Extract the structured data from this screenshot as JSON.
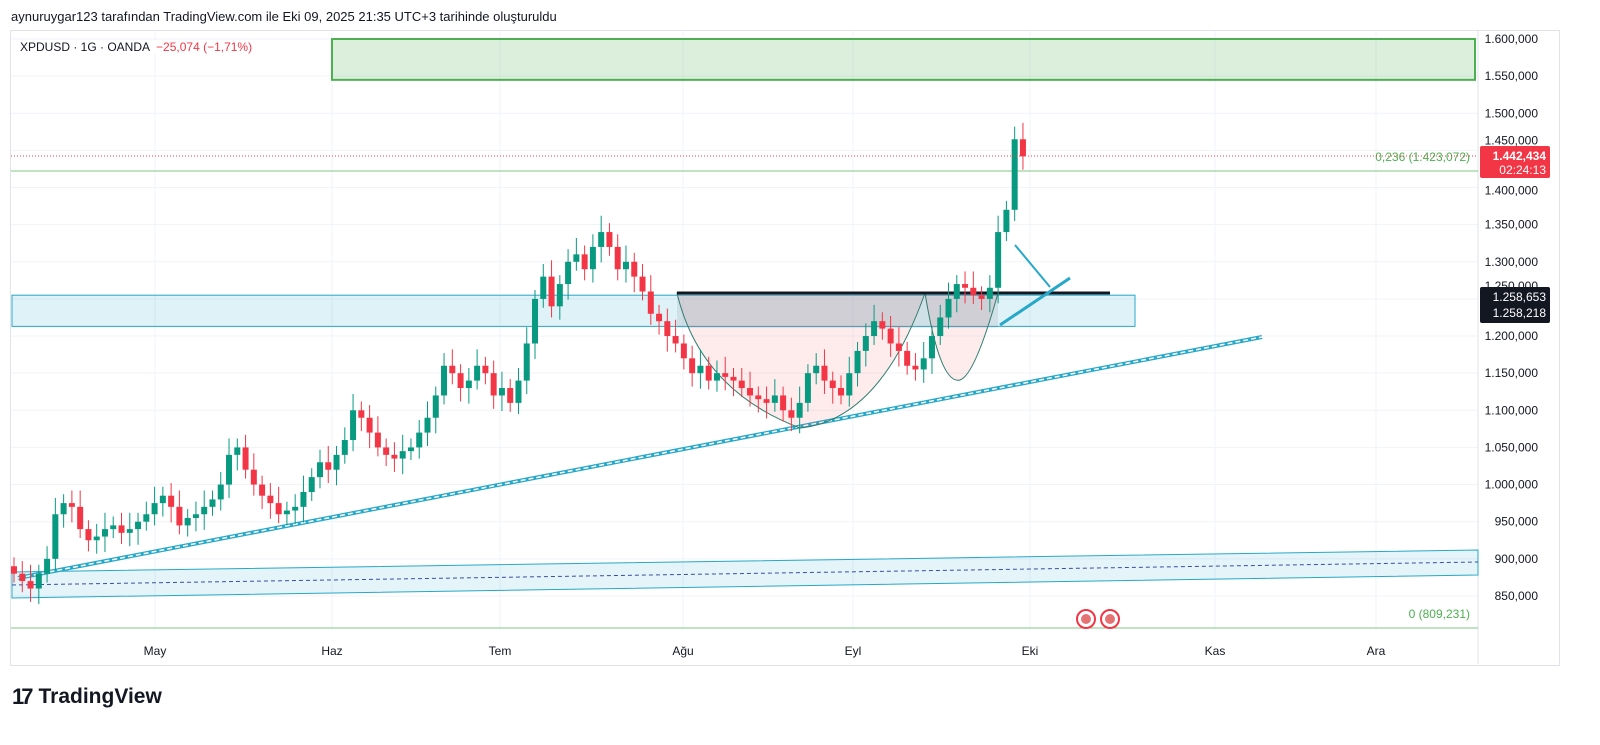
{
  "credit": "aynuruygar123 tarafından TradingView.com ile Eki 09, 2025 21:35 UTC+3 tarihinde oluşturuldu",
  "legend": {
    "symbol": "XPDUSD · 1G · OANDA",
    "change": "−25,074 (−1,71%)"
  },
  "brand": "TradingView",
  "colors": {
    "up": "#089981",
    "down": "#f23645",
    "zone_green": "#4caf50",
    "zone_blue": "#26a8c8"
  },
  "chart_data": {
    "type": "candlestick",
    "title": "XPDUSD · 1G · OANDA",
    "ylim": [
      810000,
      1630000
    ],
    "y_ticks": [
      "1.600,000",
      "1.550,000",
      "1.500,000",
      "1.450,000",
      "1.400,000",
      "1.350,000",
      "1.300,000",
      "1.250,000",
      "1.200,000",
      "1.150,000",
      "1.100,000",
      "1.050,000",
      "1.000,000",
      "950,000",
      "900,000",
      "850,000"
    ],
    "y_tick_values": [
      1600000,
      1550000,
      1500000,
      1450000,
      1400000,
      1350000,
      1300000,
      1250000,
      1200000,
      1150000,
      1100000,
      1050000,
      1000000,
      950000,
      900000,
      850000
    ],
    "x_ticks": [
      "May",
      "Haz",
      "Tem",
      "Ağu",
      "Eyl",
      "Eki",
      "Kas",
      "Ara"
    ],
    "closes_k": [
      880,
      870,
      860,
      880,
      900,
      960,
      975,
      970,
      940,
      925,
      930,
      940,
      945,
      935,
      940,
      950,
      960,
      975,
      985,
      970,
      945,
      955,
      960,
      970,
      980,
      1000,
      1040,
      1050,
      1020,
      1000,
      985,
      975,
      960,
      965,
      970,
      990,
      1010,
      1030,
      1020,
      1040,
      1060,
      1100,
      1090,
      1070,
      1050,
      1040,
      1035,
      1045,
      1050,
      1070,
      1090,
      1120,
      1160,
      1150,
      1130,
      1140,
      1160,
      1150,
      1120,
      1130,
      1110,
      1140,
      1190,
      1250,
      1280,
      1240,
      1270,
      1300,
      1310,
      1290,
      1320,
      1340,
      1320,
      1290,
      1300,
      1280,
      1260,
      1230,
      1220,
      1200,
      1190,
      1170,
      1150,
      1160,
      1140,
      1150,
      1145,
      1140,
      1130,
      1120,
      1115,
      1110,
      1120,
      1100,
      1090,
      1110,
      1150,
      1160,
      1140,
      1130,
      1120,
      1150,
      1180,
      1200,
      1220,
      1210,
      1190,
      1180,
      1160,
      1155,
      1170,
      1200,
      1225,
      1250,
      1270,
      1265,
      1255,
      1250,
      1265,
      1340,
      1370,
      1465,
      1442
    ],
    "last_price": "1.442,434",
    "countdown": "02:24:13",
    "level_labels": [
      "1.258,653",
      "1.258,218"
    ],
    "fib": [
      {
        "label": "0,236 (1.423,072)",
        "value": 1423072
      },
      {
        "label": "0 (809,231)",
        "value": 809231
      }
    ],
    "zones": {
      "green": [
        1545000,
        1600000
      ],
      "blue": [
        1213000,
        1255000
      ],
      "neckline": 1258653
    }
  }
}
